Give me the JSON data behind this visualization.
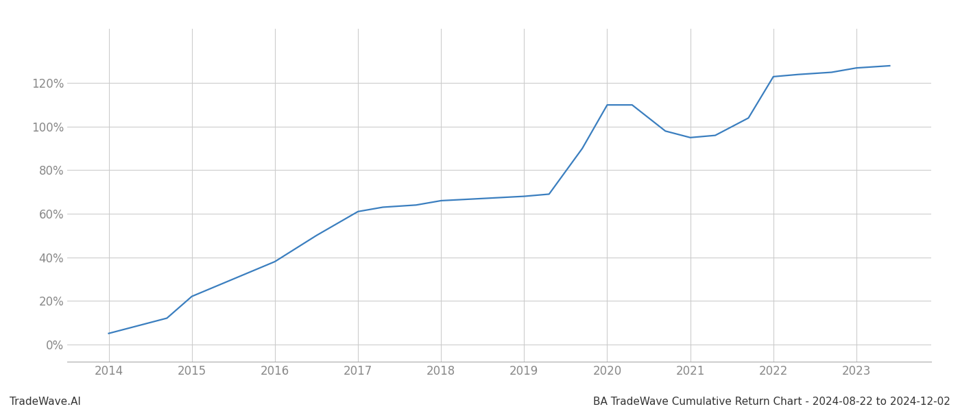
{
  "x_years": [
    2014.0,
    2014.7,
    2015.0,
    2015.5,
    2016.0,
    2016.5,
    2017.0,
    2017.3,
    2017.7,
    2018.0,
    2018.5,
    2019.0,
    2019.3,
    2019.7,
    2020.0,
    2020.3,
    2020.7,
    2021.0,
    2021.3,
    2021.7,
    2022.0,
    2022.3,
    2022.7,
    2023.0,
    2023.4
  ],
  "y_values": [
    5,
    12,
    22,
    30,
    38,
    50,
    61,
    63,
    64,
    66,
    67,
    68,
    69,
    90,
    110,
    110,
    98,
    95,
    96,
    104,
    123,
    124,
    125,
    127,
    128
  ],
  "x_ticks": [
    2014,
    2015,
    2016,
    2017,
    2018,
    2019,
    2020,
    2021,
    2022,
    2023
  ],
  "y_ticks": [
    0,
    20,
    40,
    60,
    80,
    100,
    120
  ],
  "y_labels": [
    "0%",
    "20%",
    "40%",
    "60%",
    "80%",
    "100%",
    "120%"
  ],
  "line_color": "#3a7ebf",
  "line_width": 1.6,
  "background_color": "#ffffff",
  "grid_color": "#cccccc",
  "title": "BA TradeWave Cumulative Return Chart - 2024-08-22 to 2024-12-02",
  "watermark": "TradeWave.AI",
  "title_fontsize": 11,
  "watermark_fontsize": 11,
  "tick_color": "#888888",
  "xlim": [
    2013.5,
    2023.9
  ],
  "ylim": [
    -8,
    145
  ]
}
